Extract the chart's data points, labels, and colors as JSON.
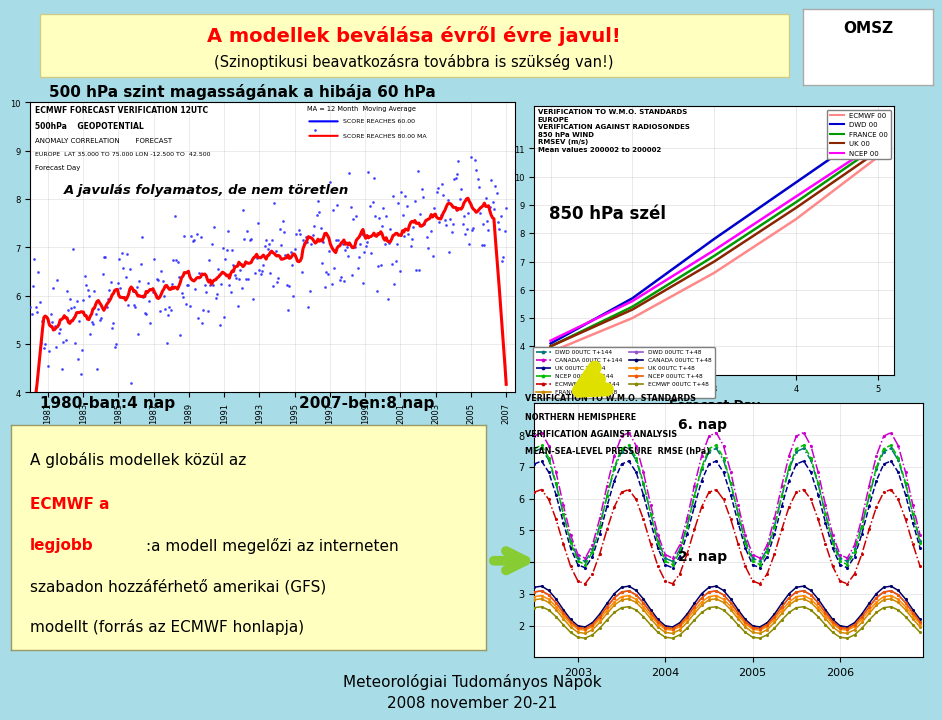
{
  "bg_color": "#a8dde8",
  "title_main": "A modellek beválása évről évre javul!",
  "title_sub": "(Szinoptikusi beavatkozásra továbbra is szükség van!)",
  "title_box_color": "#ffffc0",
  "section_title": "500 hPa szint magasságának a hibája 60 hPa",
  "left_label_bottom": "1980-ban:4 nap",
  "right_label_bottom": "2007-ben:8 nap",
  "label_6nap": "6. nap",
  "label_2nap": "2. nap",
  "bottom_text1": "Meteorológiai Tudományos Napok",
  "bottom_text2": "2008 november 20-21",
  "chart_bottom_title1": "VERIFICATION TO W.M.O. STANDARDS",
  "chart_bottom_title2": "NORTHERN HEMISPHERE",
  "chart_bottom_title3": "VERIFICATION AGAINST ANALYSIS",
  "chart_bottom_title4": "MEAN-SEA-LEVEL PRESSURE  RMSE (hPa)",
  "chart_top_title1": "VERIFICATION TO W.M.O. STANDARDS",
  "chart_top_title2": "EUROPE",
  "chart_top_title3": "VERIFICATION AGAINST RADIOSONDES",
  "chart_top_title4": "850 hPa WIND",
  "chart_top_title5": "RMSEV (m/s)",
  "chart_top_title6": "Mean values 200002 to 200002",
  "top_legend_labels": [
    "ECMWF 00",
    "DWD 00",
    "FRANCE 00",
    "UK 00",
    "NCEP 00"
  ],
  "top_legend_colors": [
    "#ff8888",
    "#0000cc",
    "#009900",
    "#8b2500",
    "#ff00ff"
  ],
  "bottom_t144_labels": [
    "DWD 00UTC T+144",
    "CANADA 00UTC T+144",
    "UK 00UTC T+144",
    "NCEP 00UTC T+144",
    "ECMWF 00UTC T+144"
  ],
  "bottom_t144_colors": [
    "#007777",
    "#cc00cc",
    "#000088",
    "#00bb00",
    "#cc0000"
  ],
  "bottom_t144_styles": [
    "-.",
    "-.",
    "--",
    "--",
    "-."
  ],
  "bottom_t48_labels": [
    "FRANCE 00UTC T+48",
    "DWD 00UTC T+48",
    "CANADA 00UTC T+48",
    "UK 00UTC T+48",
    "NCEP 00UTC T+48",
    "ECMWF 00UTC T+48"
  ],
  "bottom_t48_colors": [
    "#cc8800",
    "#9955cc",
    "#000066",
    "#ff8800",
    "#ee5500",
    "#888800"
  ],
  "850hpa_annotation": "850 hPa szél",
  "top_chart_xlabel": "Forecast Day",
  "textbox_line1_black": "A globális modellek közül az ",
  "textbox_line1_red": "ECMWF a",
  "textbox_line2_red": "legjobb",
  "textbox_line2_black": ":a modell megelőzi az interneten",
  "textbox_line3": "szabadon hozzáférhető amerikai (GFS)",
  "textbox_line4": "modellt (forrás az ECMWF honlapja)"
}
